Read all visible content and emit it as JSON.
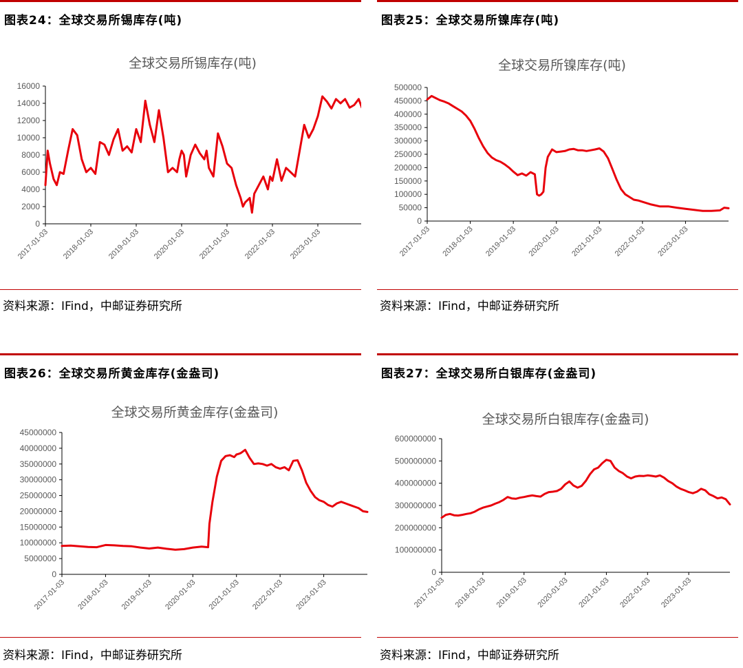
{
  "panels": [
    {
      "heading": "图表24：全球交易所锡库存(吨)",
      "source": "资料来源：IFind，中邮证券研究所",
      "chart_data": {
        "type": "line",
        "title": "全球交易所锡库存(吨)",
        "xlabel": "",
        "ylabel": "",
        "ylim": [
          0,
          16000
        ],
        "yticks": [
          "16000",
          "14000",
          "12000",
          "10000",
          "8000",
          "6000",
          "4000",
          "2000",
          "0"
        ],
        "xticks": [
          "2017-01-03",
          "2018-01-03",
          "2019-01-03",
          "2020-01-03",
          "2021-01-03",
          "2022-01-03",
          "2023-01-03"
        ],
        "xlim": [
          2017.0,
          2024.0
        ],
        "series_color": "#e8000b",
        "series": [
          {
            "x": [
              2017.0,
              2017.05,
              2017.1,
              2017.18,
              2017.25,
              2017.32,
              2017.4,
              2017.5,
              2017.6,
              2017.7,
              2017.8,
              2017.9,
              2018.0,
              2018.1,
              2018.2,
              2018.3,
              2018.4,
              2018.5,
              2018.6,
              2018.7,
              2018.8,
              2018.9,
              2019.0,
              2019.1,
              2019.2,
              2019.3,
              2019.4,
              2019.5,
              2019.6,
              2019.7,
              2019.8,
              2019.9,
              2019.95,
              2020.0,
              2020.05,
              2020.1,
              2020.2,
              2020.3,
              2020.4,
              2020.5,
              2020.55,
              2020.6,
              2020.7,
              2020.8,
              2020.9,
              2021.0,
              2021.1,
              2021.2,
              2021.3,
              2021.35,
              2021.4,
              2021.5,
              2021.55,
              2021.6,
              2021.7,
              2021.8,
              2021.9,
              2021.95,
              2022.0,
              2022.1,
              2022.2,
              2022.3,
              2022.4,
              2022.5,
              2022.6,
              2022.7,
              2022.8,
              2022.9,
              2023.0,
              2023.1,
              2023.2,
              2023.3,
              2023.4,
              2023.5,
              2023.6,
              2023.7,
              2023.8,
              2023.9,
              2023.97,
              2024.0
            ],
            "y": [
              4500,
              8500,
              7000,
              5200,
              4500,
              6000,
              5800,
              8500,
              11000,
              10300,
              7500,
              6000,
              6500,
              5800,
              9500,
              9200,
              8000,
              9800,
              11000,
              8500,
              9000,
              8300,
              11000,
              9500,
              14300,
              11500,
              9500,
              13200,
              10000,
              6000,
              6500,
              6000,
              7500,
              8500,
              8000,
              5500,
              8000,
              9200,
              8200,
              7500,
              8500,
              6500,
              5500,
              10500,
              9000,
              7000,
              6500,
              4500,
              3000,
              2000,
              2500,
              3000,
              1300,
              3500,
              4500,
              5500,
              4000,
              5500,
              5000,
              7500,
              5000,
              6500,
              6000,
              5500,
              8500,
              11500,
              10000,
              11000,
              12500,
              14800,
              14200,
              13400,
              14500,
              14000,
              14500,
              13500,
              13800,
              14500,
              13500,
              13400
            ]
          }
        ]
      }
    },
    {
      "heading": "图表25：全球交易所镍库存(吨)",
      "source": "资料来源：IFind，中邮证券研究所",
      "chart_data": {
        "type": "line",
        "title": "全球交易所镍库存(吨)",
        "xlabel": "",
        "ylabel": "",
        "ylim": [
          0,
          500000
        ],
        "yticks": [
          "500000",
          "450000",
          "400000",
          "350000",
          "300000",
          "250000",
          "200000",
          "150000",
          "100000",
          "50000",
          "0"
        ],
        "xticks": [
          "2017-01-03",
          "2018-01-03",
          "2019-01-03",
          "2020-01-03",
          "2021-01-03",
          "2022-01-03",
          "2023-01-03"
        ],
        "xlim": [
          2017.0,
          2024.0
        ],
        "series_color": "#e8000b",
        "series": [
          {
            "x": [
              2017.0,
              2017.1,
              2017.2,
              2017.3,
              2017.4,
              2017.5,
              2017.6,
              2017.7,
              2017.8,
              2017.9,
              2018.0,
              2018.1,
              2018.2,
              2018.3,
              2018.4,
              2018.5,
              2018.6,
              2018.7,
              2018.8,
              2018.9,
              2019.0,
              2019.1,
              2019.2,
              2019.3,
              2019.4,
              2019.5,
              2019.55,
              2019.6,
              2019.65,
              2019.7,
              2019.75,
              2019.8,
              2019.9,
              2020.0,
              2020.1,
              2020.2,
              2020.3,
              2020.4,
              2020.5,
              2020.6,
              2020.7,
              2020.8,
              2020.9,
              2021.0,
              2021.1,
              2021.2,
              2021.3,
              2021.4,
              2021.5,
              2021.6,
              2021.7,
              2021.8,
              2021.9,
              2022.0,
              2022.2,
              2022.4,
              2022.6,
              2022.8,
              2023.0,
              2023.2,
              2023.4,
              2023.6,
              2023.8,
              2023.9,
              2024.0
            ],
            "y": [
              455000,
              468000,
              460000,
              452000,
              447000,
              440000,
              430000,
              420000,
              410000,
              395000,
              375000,
              345000,
              310000,
              280000,
              255000,
              238000,
              228000,
              222000,
              212000,
              200000,
              185000,
              172000,
              178000,
              170000,
              183000,
              175000,
              100000,
              95000,
              100000,
              110000,
              200000,
              240000,
              268000,
              258000,
              260000,
              262000,
              268000,
              270000,
              265000,
              265000,
              262000,
              265000,
              268000,
              272000,
              260000,
              235000,
              195000,
              155000,
              120000,
              100000,
              90000,
              80000,
              77000,
              72000,
              62000,
              55000,
              55000,
              50000,
              46000,
              42000,
              38000,
              38000,
              40000,
              50000,
              48000
            ]
          }
        ]
      }
    },
    {
      "heading": "图表26：全球交易所黄金库存(金盎司)",
      "source": "资料来源：IFind，中邮证券研究所",
      "chart_data": {
        "type": "line",
        "title": "全球交易所黄金库存(金盎司)",
        "xlabel": "",
        "ylabel": "",
        "ylim": [
          0,
          45000000
        ],
        "yticks": [
          "45000000",
          "40000000",
          "35000000",
          "30000000",
          "25000000",
          "20000000",
          "15000000",
          "10000000",
          "5000000",
          "0"
        ],
        "xticks": [
          "2017-01-03",
          "2018-01-03",
          "2019-01-03",
          "2020-01-03",
          "2021-01-03",
          "2022-01-03",
          "2023-01-03"
        ],
        "xlim": [
          2017.0,
          2024.0
        ],
        "series_color": "#e8000b",
        "series": [
          {
            "x": [
              2017.0,
              2017.2,
              2017.4,
              2017.6,
              2017.8,
              2018.0,
              2018.2,
              2018.4,
              2018.6,
              2018.8,
              2019.0,
              2019.2,
              2019.4,
              2019.6,
              2019.8,
              2020.0,
              2020.2,
              2020.35,
              2020.38,
              2020.45,
              2020.55,
              2020.65,
              2020.75,
              2020.85,
              2020.95,
              2021.0,
              2021.05,
              2021.1,
              2021.2,
              2021.3,
              2021.4,
              2021.5,
              2021.6,
              2021.7,
              2021.8,
              2021.9,
              2022.0,
              2022.1,
              2022.2,
              2022.3,
              2022.4,
              2022.5,
              2022.6,
              2022.7,
              2022.8,
              2022.9,
              2023.0,
              2023.1,
              2023.2,
              2023.3,
              2023.4,
              2023.5,
              2023.6,
              2023.7,
              2023.8,
              2023.9,
              2024.0
            ],
            "y": [
              9000000,
              9100000,
              8900000,
              8700000,
              8600000,
              9300000,
              9200000,
              9000000,
              8900000,
              8500000,
              8200000,
              8500000,
              8100000,
              7800000,
              8000000,
              8500000,
              8800000,
              8600000,
              16000000,
              23000000,
              31000000,
              36000000,
              37500000,
              37800000,
              37200000,
              38000000,
              38200000,
              38500000,
              39500000,
              37000000,
              35000000,
              35200000,
              35000000,
              34500000,
              35000000,
              34000000,
              33500000,
              34000000,
              33000000,
              36000000,
              36200000,
              33000000,
              29000000,
              26500000,
              24500000,
              23500000,
              23000000,
              22000000,
              21500000,
              22500000,
              23000000,
              22500000,
              22000000,
              21500000,
              21000000,
              20000000,
              19800000
            ]
          }
        ]
      }
    },
    {
      "heading": "图表27：全球交易所白银库存(金盎司)",
      "source": "资料来源：IFind，中邮证券研究所",
      "chart_data": {
        "type": "line",
        "title": "全球交易所白银库存(金盎司)",
        "xlabel": "",
        "ylabel": "",
        "ylim": [
          0,
          600000000
        ],
        "yticks": [
          "600000000",
          "500000000",
          "400000000",
          "300000000",
          "200000000",
          "100000000",
          "0"
        ],
        "xticks": [
          "2017-01-03",
          "2018-01-03",
          "2019-01-03",
          "2020-01-03",
          "2021-01-03",
          "2022-01-03",
          "2023-01-03"
        ],
        "xlim": [
          2017.0,
          2024.0
        ],
        "series_color": "#e8000b",
        "series": [
          {
            "x": [
              2017.0,
              2017.1,
              2017.2,
              2017.3,
              2017.4,
              2017.5,
              2017.6,
              2017.7,
              2017.8,
              2017.9,
              2018.0,
              2018.1,
              2018.2,
              2018.3,
              2018.4,
              2018.5,
              2018.6,
              2018.7,
              2018.8,
              2018.9,
              2019.0,
              2019.1,
              2019.2,
              2019.3,
              2019.4,
              2019.5,
              2019.6,
              2019.7,
              2019.8,
              2019.9,
              2020.0,
              2020.1,
              2020.2,
              2020.3,
              2020.4,
              2020.5,
              2020.6,
              2020.7,
              2020.8,
              2020.9,
              2021.0,
              2021.1,
              2021.2,
              2021.3,
              2021.4,
              2021.5,
              2021.6,
              2021.7,
              2021.8,
              2021.9,
              2022.0,
              2022.1,
              2022.2,
              2022.3,
              2022.4,
              2022.5,
              2022.6,
              2022.7,
              2022.8,
              2022.9,
              2023.0,
              2023.1,
              2023.2,
              2023.3,
              2023.4,
              2023.5,
              2023.6,
              2023.7,
              2023.8,
              2023.9,
              2024.0
            ],
            "y": [
              245000000,
              258000000,
              262000000,
              256000000,
              255000000,
              258000000,
              262000000,
              265000000,
              272000000,
              282000000,
              290000000,
              295000000,
              300000000,
              308000000,
              315000000,
              325000000,
              338000000,
              332000000,
              330000000,
              335000000,
              338000000,
              342000000,
              345000000,
              342000000,
              340000000,
              352000000,
              360000000,
              362000000,
              365000000,
              375000000,
              395000000,
              408000000,
              390000000,
              380000000,
              388000000,
              410000000,
              440000000,
              462000000,
              470000000,
              490000000,
              505000000,
              500000000,
              470000000,
              455000000,
              445000000,
              430000000,
              422000000,
              430000000,
              433000000,
              432000000,
              435000000,
              433000000,
              430000000,
              435000000,
              425000000,
              410000000,
              400000000,
              385000000,
              375000000,
              368000000,
              360000000,
              355000000,
              362000000,
              375000000,
              368000000,
              350000000,
              342000000,
              332000000,
              336000000,
              328000000,
              305000000
            ]
          }
        ]
      }
    }
  ]
}
